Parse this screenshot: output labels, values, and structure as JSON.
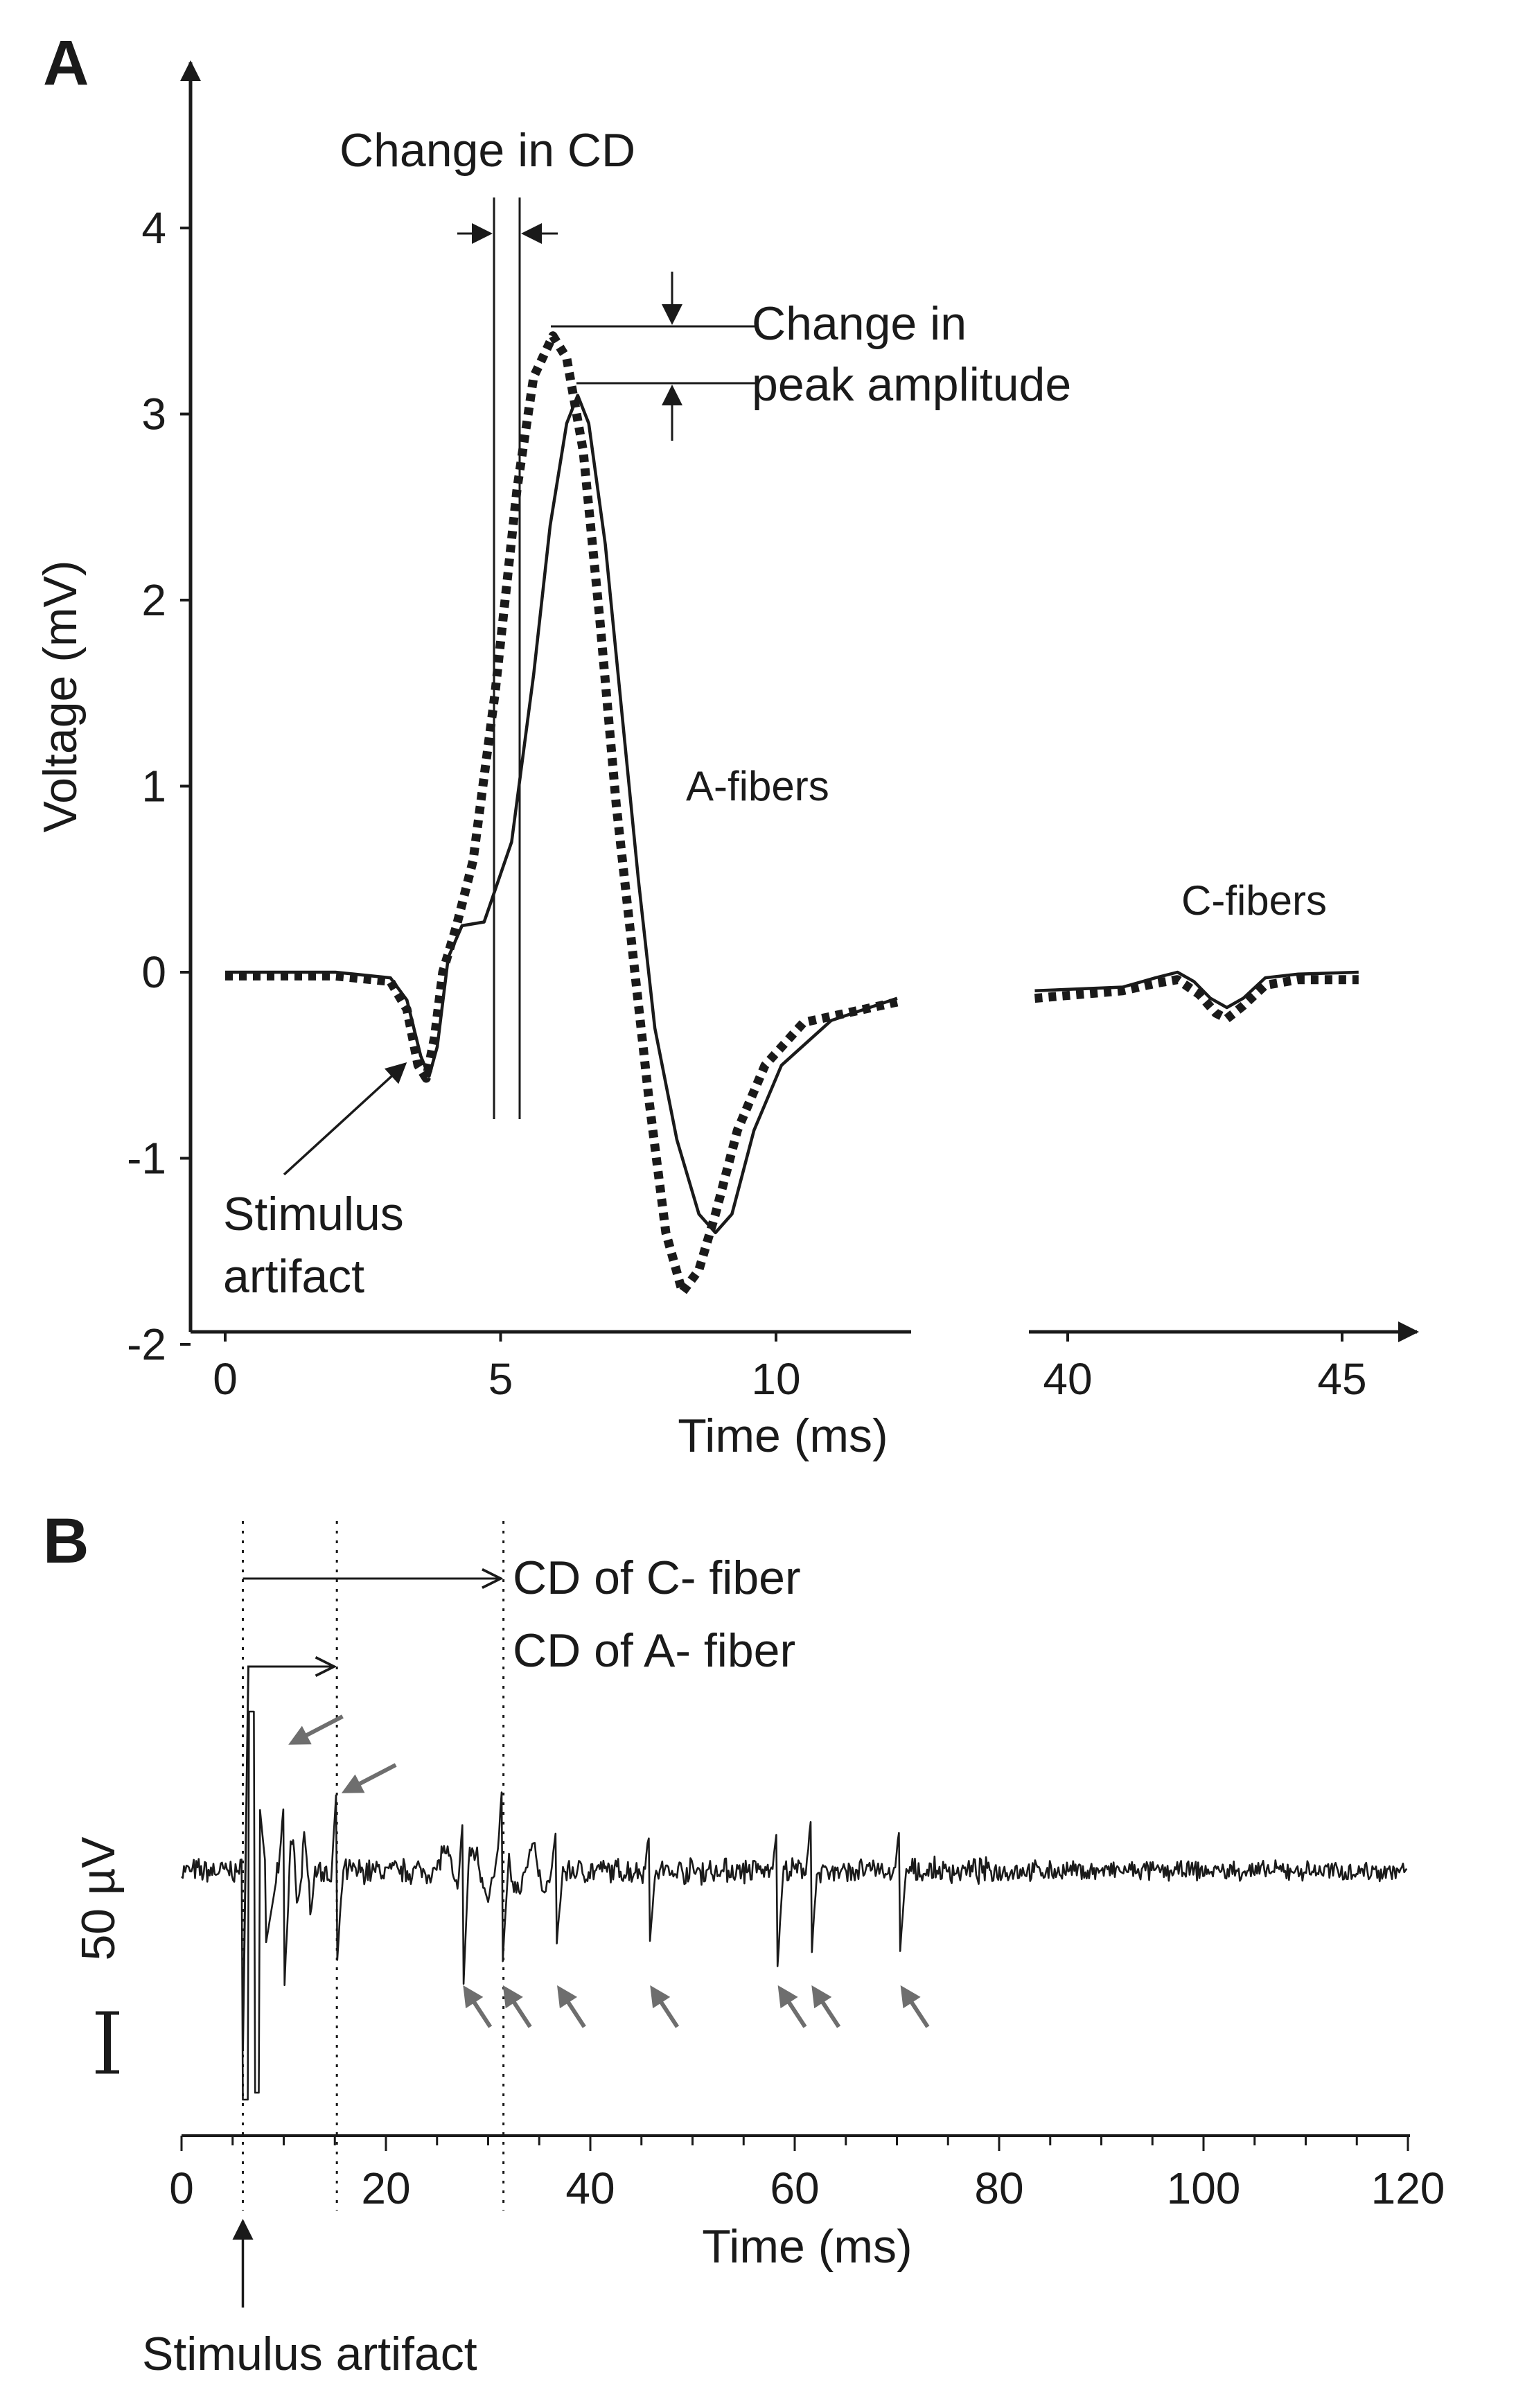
{
  "chart_data": [
    {
      "panel": "A",
      "type": "line",
      "xlabel": "Time (ms)",
      "ylabel": "Voltage (mV)",
      "x_segments": [
        [
          0,
          12.2
        ],
        [
          39.4,
          45.3
        ]
      ],
      "x_ticks": [
        "0",
        "5",
        "10",
        "40",
        "45"
      ],
      "x_tick_values": [
        0,
        5,
        10,
        40,
        45
      ],
      "y_ticks": [
        "4",
        "3",
        "2",
        "1",
        "0",
        "-1",
        "-2"
      ],
      "y_tick_values": [
        4,
        3,
        2,
        1,
        0,
        -1,
        -2
      ],
      "ylim": [
        -2,
        4.9
      ],
      "series": [
        {
          "name": "solid",
          "style": "solid",
          "points": [
            [
              0,
              0
            ],
            [
              2,
              0
            ],
            [
              3,
              -0.03
            ],
            [
              3.3,
              -0.15
            ],
            [
              3.55,
              -0.45
            ],
            [
              3.7,
              -0.56
            ],
            [
              3.85,
              -0.4
            ],
            [
              4.05,
              0.08
            ],
            [
              4.3,
              0.25
            ],
            [
              4.7,
              0.27
            ],
            [
              5.2,
              0.7
            ],
            [
              5.6,
              1.6
            ],
            [
              5.9,
              2.4
            ],
            [
              6.2,
              2.95
            ],
            [
              6.4,
              3.1
            ],
            [
              6.6,
              2.95
            ],
            [
              6.9,
              2.3
            ],
            [
              7.2,
              1.4
            ],
            [
              7.5,
              0.5
            ],
            [
              7.8,
              -0.3
            ],
            [
              8.2,
              -0.9
            ],
            [
              8.6,
              -1.3
            ],
            [
              8.9,
              -1.4
            ],
            [
              9.2,
              -1.3
            ],
            [
              9.6,
              -0.85
            ],
            [
              10.1,
              -0.5
            ],
            [
              11,
              -0.26
            ],
            [
              12.2,
              -0.14
            ],
            [
              39.4,
              -0.1
            ],
            [
              41,
              -0.08
            ],
            [
              41.6,
              -0.03
            ],
            [
              42,
              0
            ],
            [
              42.3,
              -0.05
            ],
            [
              42.6,
              -0.14
            ],
            [
              42.9,
              -0.19
            ],
            [
              43.2,
              -0.14
            ],
            [
              43.6,
              -0.03
            ],
            [
              44.2,
              -0.01
            ],
            [
              45.3,
              0
            ]
          ]
        },
        {
          "name": "dotted",
          "style": "dotted",
          "points": [
            [
              0,
              -0.02
            ],
            [
              2,
              -0.02
            ],
            [
              3,
              -0.05
            ],
            [
              3.3,
              -0.2
            ],
            [
              3.5,
              -0.5
            ],
            [
              3.65,
              -0.57
            ],
            [
              3.8,
              -0.35
            ],
            [
              3.95,
              0
            ],
            [
              4.2,
              0.25
            ],
            [
              4.5,
              0.6
            ],
            [
              4.9,
              1.5
            ],
            [
              5.3,
              2.6
            ],
            [
              5.6,
              3.2
            ],
            [
              5.95,
              3.42
            ],
            [
              6.2,
              3.3
            ],
            [
              6.5,
              2.8
            ],
            [
              6.8,
              1.9
            ],
            [
              7.1,
              0.9
            ],
            [
              7.4,
              0.1
            ],
            [
              7.7,
              -0.7
            ],
            [
              8,
              -1.4
            ],
            [
              8.3,
              -1.72
            ],
            [
              8.6,
              -1.6
            ],
            [
              8.9,
              -1.3
            ],
            [
              9.3,
              -0.85
            ],
            [
              9.8,
              -0.5
            ],
            [
              10.5,
              -0.27
            ],
            [
              12.2,
              -0.16
            ],
            [
              39.4,
              -0.14
            ],
            [
              41,
              -0.1
            ],
            [
              41.6,
              -0.06
            ],
            [
              42,
              -0.04
            ],
            [
              42.4,
              -0.12
            ],
            [
              42.7,
              -0.22
            ],
            [
              42.9,
              -0.25
            ],
            [
              43.2,
              -0.18
            ],
            [
              43.6,
              -0.07
            ],
            [
              44.2,
              -0.04
            ],
            [
              45.3,
              -0.04
            ]
          ]
        }
      ],
      "annotations": {
        "change_in_cd": "Change in CD",
        "change_in_peak_line1": "Change in",
        "change_in_peak_line2": "peak amplitude",
        "a_fibers": "A-fibers",
        "c_fibers": "C-fibers",
        "stimulus_artifact_line1": "Stimulus",
        "stimulus_artifact_line2": "artifact"
      }
    },
    {
      "panel": "B",
      "type": "line",
      "xlabel": "Time (ms)",
      "xlim": [
        0,
        120
      ],
      "x_ticks": [
        "0",
        "20",
        "40",
        "60",
        "80",
        "100",
        "120"
      ],
      "x_tick_values": [
        0,
        20,
        40,
        60,
        80,
        100,
        120
      ],
      "scale_bar": "50 µV",
      "stimulus_time_ms": 6,
      "a_fiber_marker_ms": 15.2,
      "c_fiber_marker_ms": 31.5,
      "annotations": {
        "cd_c_fiber": "CD of  C- fiber",
        "cd_a_fiber": "CD of  A- fiber",
        "stimulus_artifact": "Stimulus artifact"
      },
      "spikes_ms": [
        10,
        15.2,
        27.5,
        31.4,
        36.7,
        45.8,
        58.3,
        61.6,
        70.3
      ],
      "arrow_markers_ms": [
        10,
        15.2,
        27.5,
        31.4,
        36.7,
        45.8,
        58.3,
        61.6,
        70.3
      ]
    }
  ],
  "panel_labels": {
    "a": "A",
    "b": "B"
  },
  "colors": {
    "ink": "#1a1a1a",
    "arrow_gray": "#6e6e6e"
  }
}
